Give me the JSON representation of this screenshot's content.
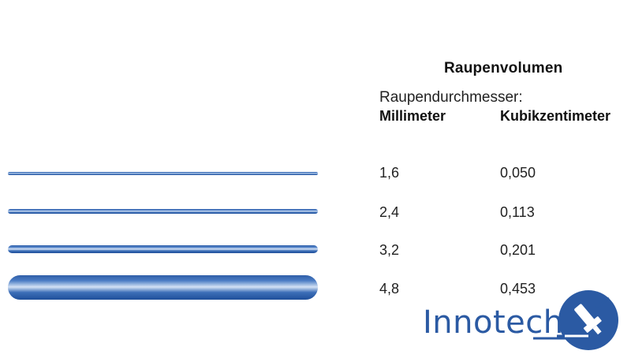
{
  "table": {
    "title": "Raupenvolumen",
    "subtitle": "Raupendurchmesser:",
    "col_mm": "Millimeter",
    "col_cc": "Kubikzentimeter",
    "rows": [
      {
        "mm": "1,6",
        "cc": "0,050"
      },
      {
        "mm": "2,4",
        "cc": "0,113"
      },
      {
        "mm": "3,2",
        "cc": "0,201"
      },
      {
        "mm": "4,8",
        "cc": "0,453"
      }
    ]
  },
  "logo": {
    "text": "Innotech",
    "color": "#2b5aa3"
  },
  "colors": {
    "bead": "#2f5ea8"
  }
}
